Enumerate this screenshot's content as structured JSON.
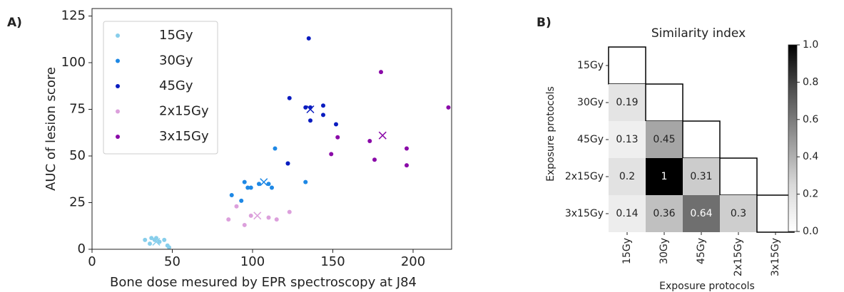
{
  "chart_data": [
    {
      "type": "scatter",
      "panel_label": "A)",
      "xlabel": "Bone dose mesured by EPR spectroscopy at J84",
      "ylabel": "AUC of lesion score",
      "xlim": [
        0,
        224
      ],
      "ylim": [
        0,
        129
      ],
      "xticks": [
        0,
        50,
        100,
        150,
        200
      ],
      "yticks": [
        0,
        25,
        50,
        75,
        100,
        125
      ],
      "legend": "upper left",
      "series": [
        {
          "name": "15Gy",
          "color": "#87ceeb",
          "x": [
            33,
            36,
            37,
            39,
            40,
            42,
            45,
            47,
            48
          ],
          "values": [
            5,
            3,
            6,
            5,
            6,
            4,
            5,
            2,
            1
          ],
          "mean_x": 40,
          "mean_y": 4
        },
        {
          "name": "30Gy",
          "color": "#1e88e5",
          "x": [
            87,
            93,
            95,
            97,
            99,
            104,
            110,
            112,
            114,
            122,
            133
          ],
          "values": [
            29,
            26,
            36,
            33,
            33,
            35,
            35,
            33,
            54,
            46,
            36
          ],
          "mean_x": 107,
          "mean_y": 36
        },
        {
          "name": "45Gy",
          "color": "#0a1cc0",
          "x": [
            122,
            123,
            133,
            135,
            136,
            136,
            144,
            144,
            152
          ],
          "values": [
            46,
            81,
            76,
            113,
            69,
            76,
            77,
            72,
            67
          ],
          "mean_x": 136,
          "mean_y": 75
        },
        {
          "name": "2x15Gy",
          "color": "#dca0dc",
          "x": [
            85,
            90,
            95,
            99,
            110,
            115,
            123
          ],
          "values": [
            16,
            23,
            13,
            18,
            17,
            16,
            20
          ],
          "mean_x": 103,
          "mean_y": 18
        },
        {
          "name": "3x15Gy",
          "color": "#8a0aa8",
          "x": [
            149,
            153,
            173,
            176,
            180,
            196,
            196,
            222
          ],
          "values": [
            51,
            60,
            58,
            48,
            95,
            54,
            45,
            76
          ],
          "mean_x": 181,
          "mean_y": 61
        }
      ]
    },
    {
      "type": "heatmap",
      "panel_label": "B)",
      "title": "Similarity index",
      "xlabel": "Exposure protocols",
      "ylabel": "Exposure protocols",
      "cmap": "Greys",
      "categories": [
        "15Gy",
        "30Gy",
        "45Gy",
        "2x15Gy",
        "3x15Gy"
      ],
      "values": [
        [
          null,
          null,
          null,
          null,
          null
        ],
        [
          0.19,
          null,
          null,
          null,
          null
        ],
        [
          0.13,
          0.45,
          null,
          null,
          null
        ],
        [
          0.2,
          1,
          0.31,
          null,
          null
        ],
        [
          0.14,
          0.36,
          0.64,
          0.3,
          null
        ]
      ],
      "clim": [
        0,
        1
      ],
      "cticks": [
        {
          "value": 0,
          "label": "0.0"
        },
        0.2,
        0.4,
        0.6,
        0.8,
        {
          "value": 1,
          "label": "1.0"
        }
      ]
    }
  ]
}
